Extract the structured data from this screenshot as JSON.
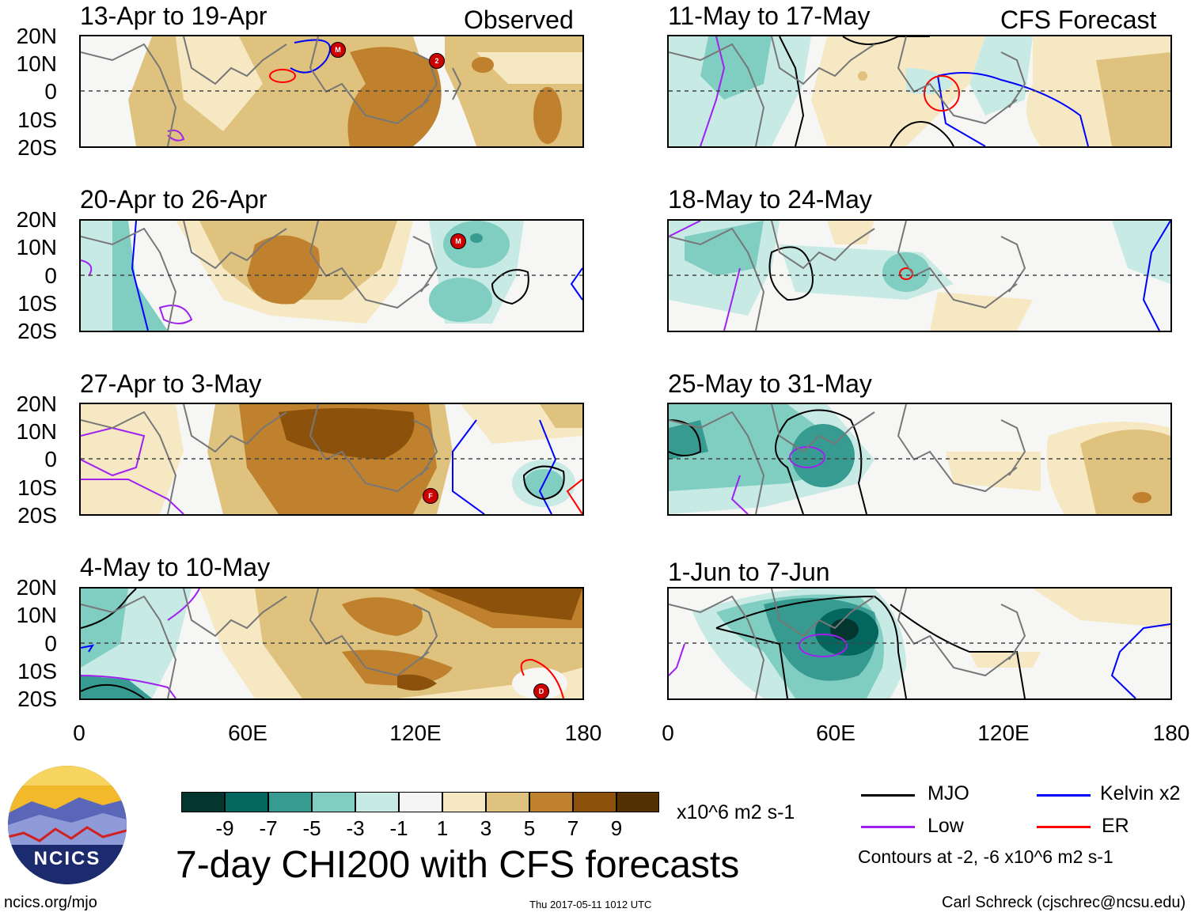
{
  "headers": {
    "left": "Observed",
    "right": "CFS Forecast"
  },
  "latitude_labels": [
    "20N",
    "10N",
    "0",
    "10S",
    "20S"
  ],
  "longitude_labels": [
    "0",
    "60E",
    "120E",
    "180"
  ],
  "observed_panels": [
    {
      "title": "13-Apr to 19-Apr"
    },
    {
      "title": "20-Apr to 26-Apr"
    },
    {
      "title": "27-Apr to 3-May"
    },
    {
      "title": "4-May to 10-May"
    }
  ],
  "forecast_panels": [
    {
      "title": "11-May to 17-May"
    },
    {
      "title": "18-May to 24-May"
    },
    {
      "title": "25-May to 31-May"
    },
    {
      "title": "1-Jun to 7-Jun"
    }
  ],
  "colorbar": {
    "labels": [
      "-9",
      "-7",
      "-5",
      "-3",
      "-1",
      "1",
      "3",
      "5",
      "7",
      "9"
    ],
    "units": "x10^6 m2 s-1",
    "colors": [
      "#02362f",
      "#03675f",
      "#379b91",
      "#80cdc1",
      "#c7eae5",
      "#f5f5f5",
      "#f6e8c3",
      "#dfc27d",
      "#bf812d",
      "#8c510a",
      "#543005"
    ]
  },
  "legend": {
    "items": [
      {
        "label": "MJO",
        "color": "#000000"
      },
      {
        "label": "Kelvin x2",
        "color": "#0000ff"
      },
      {
        "label": "Low",
        "color": "#a020f0"
      },
      {
        "label": "ER",
        "color": "#ff0000"
      }
    ],
    "contour_note": "Contours at -2, -6 x10^6 m2 s-1"
  },
  "main_title": "7-day CHI200 with CFS forecasts",
  "logo": {
    "text": "NCICS"
  },
  "footer": {
    "url": "ncics.org/mjo",
    "timestamp": "Thu 2017-05-11 1012 UTC",
    "author": "Carl Schreck (cjschrec@ncsu.edu)"
  },
  "storm_markers": [
    {
      "panel": "obs-1",
      "label": "M"
    },
    {
      "panel": "obs-1",
      "label": "2"
    },
    {
      "panel": "obs-2",
      "label": "M"
    },
    {
      "panel": "obs-3",
      "label": "F"
    },
    {
      "panel": "obs-4",
      "label": "D"
    }
  ]
}
